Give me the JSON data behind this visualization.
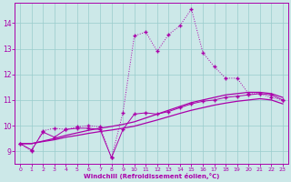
{
  "xlabel": "Windchill (Refroidissement éolien,°C)",
  "bg_color": "#cce8e8",
  "line_color": "#aa00aa",
  "xlim": [
    -0.5,
    23.5
  ],
  "ylim": [
    8.5,
    14.8
  ],
  "xticks": [
    0,
    1,
    2,
    3,
    4,
    5,
    6,
    7,
    8,
    9,
    10,
    11,
    12,
    13,
    14,
    15,
    16,
    17,
    18,
    19,
    20,
    21,
    22,
    23
  ],
  "yticks": [
    9,
    10,
    11,
    12,
    13,
    14
  ],
  "series": [
    {
      "x": [
        0,
        1,
        2,
        3,
        4,
        5,
        6,
        7,
        8,
        9,
        10,
        11,
        12,
        13,
        14,
        15,
        16,
        17,
        18,
        19,
        20,
        21,
        22,
        23
      ],
      "y": [
        9.3,
        9.0,
        9.8,
        9.9,
        9.85,
        9.95,
        10.0,
        9.95,
        8.75,
        10.5,
        13.5,
        13.65,
        12.9,
        13.55,
        13.9,
        14.55,
        12.85,
        12.3,
        11.85,
        11.85,
        11.25,
        11.25,
        11.1,
        11.0
      ],
      "linestyle": "dotted",
      "marker": "+"
    },
    {
      "x": [
        0,
        1,
        2,
        3,
        4,
        5,
        6,
        7,
        8,
        9,
        10,
        11,
        12,
        13,
        14,
        15,
        16,
        17,
        18,
        19,
        20,
        21,
        22,
        23
      ],
      "y": [
        9.3,
        9.05,
        9.75,
        9.55,
        9.85,
        9.9,
        9.9,
        9.85,
        8.75,
        9.85,
        10.45,
        10.5,
        10.45,
        10.55,
        10.7,
        10.85,
        10.95,
        11.0,
        11.1,
        11.15,
        11.2,
        11.25,
        11.2,
        11.0
      ],
      "linestyle": "solid",
      "marker": "+"
    },
    {
      "x": [
        0,
        1,
        2,
        3,
        4,
        5,
        6,
        7,
        8,
        9,
        10,
        11,
        12,
        13,
        14,
        15,
        16,
        17,
        18,
        19,
        20,
        21,
        22,
        23
      ],
      "y": [
        9.3,
        9.3,
        9.4,
        9.5,
        9.62,
        9.72,
        9.82,
        9.9,
        9.97,
        10.05,
        10.15,
        10.3,
        10.45,
        10.6,
        10.75,
        10.9,
        11.0,
        11.1,
        11.2,
        11.25,
        11.3,
        11.3,
        11.25,
        11.1
      ],
      "linestyle": "solid",
      "marker": null
    },
    {
      "x": [
        0,
        1,
        2,
        3,
        4,
        5,
        6,
        7,
        8,
        9,
        10,
        11,
        12,
        13,
        14,
        15,
        16,
        17,
        18,
        19,
        20,
        21,
        22,
        23
      ],
      "y": [
        9.3,
        9.3,
        9.38,
        9.45,
        9.55,
        9.62,
        9.7,
        9.77,
        9.83,
        9.9,
        9.98,
        10.1,
        10.22,
        10.35,
        10.48,
        10.6,
        10.7,
        10.8,
        10.88,
        10.95,
        11.0,
        11.05,
        11.0,
        10.85
      ],
      "linestyle": "solid",
      "marker": null
    }
  ]
}
